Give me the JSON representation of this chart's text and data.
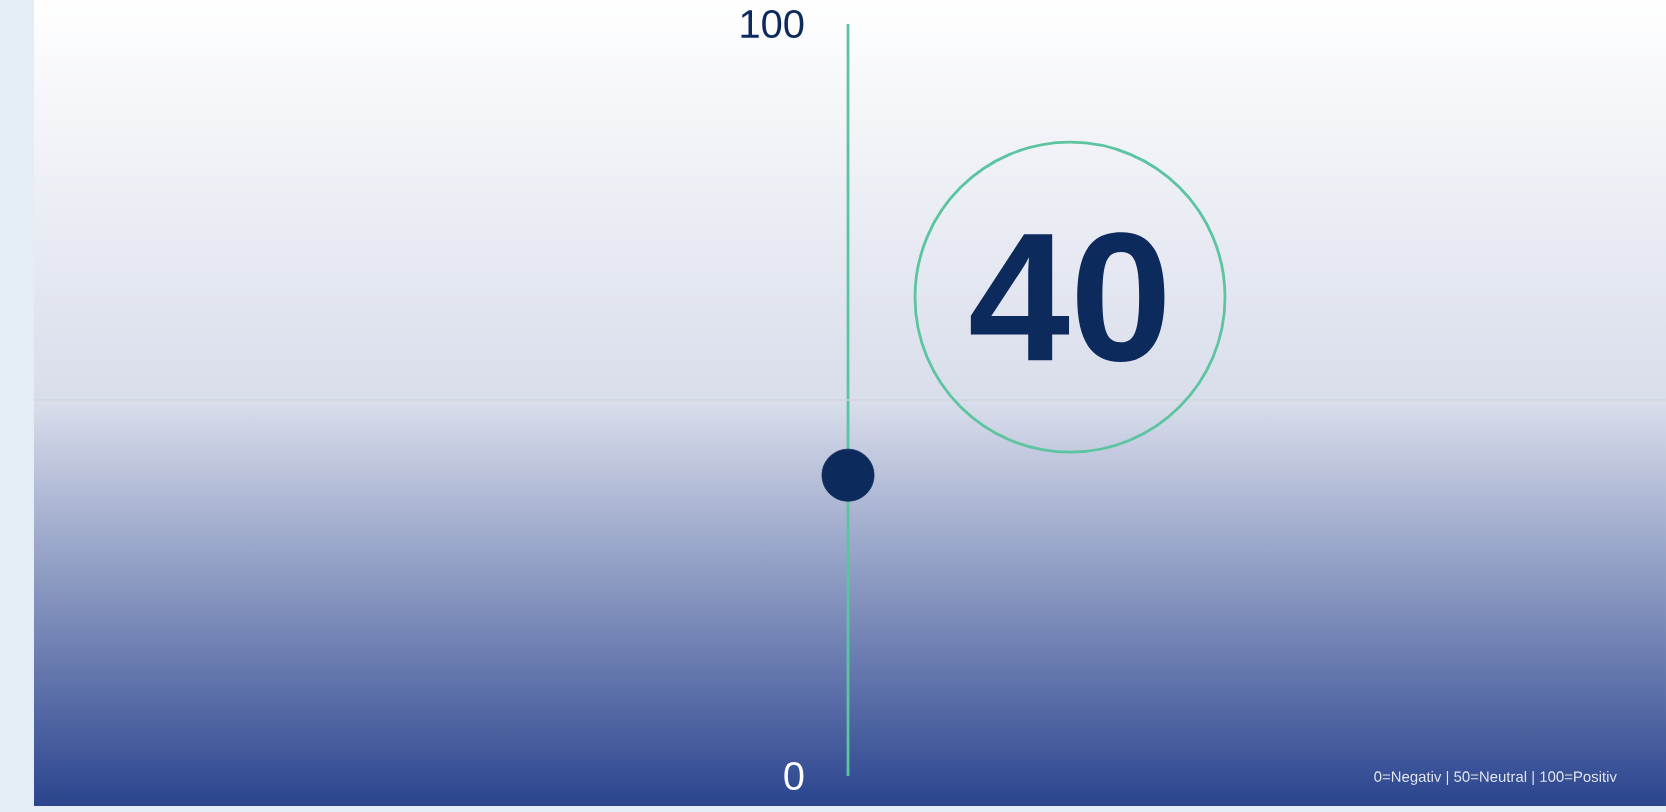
{
  "chart_data": {
    "type": "scatter",
    "categories": [
      null
    ],
    "values": [
      40
    ],
    "color": "#0d2a5c",
    "ylim": [
      0,
      100
    ],
    "yticks": [
      0,
      100
    ],
    "data_labels": true,
    "ref_lines": [
      {
        "axis": "y",
        "value": 50,
        "color": "#d4d6dc"
      }
    ],
    "annotations": [
      "0=Negativ | 50=Neutral | 100=Positiv"
    ]
  }
}
